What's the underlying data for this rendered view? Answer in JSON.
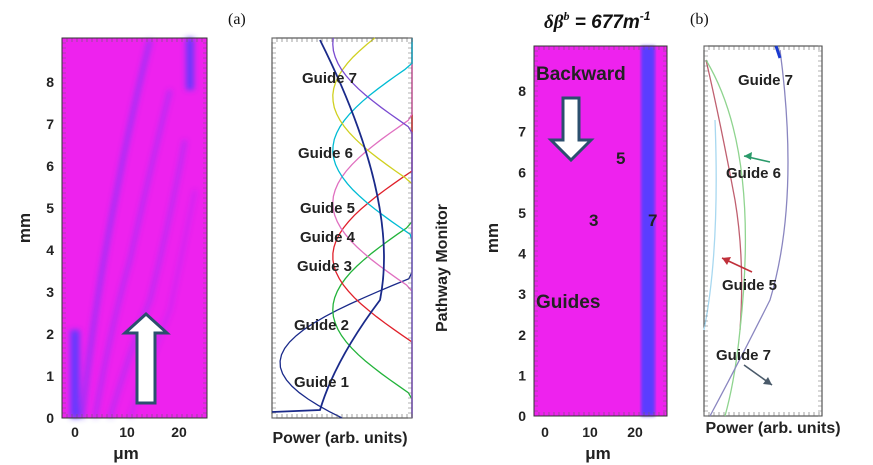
{
  "panel_a": {
    "tag": "(a)",
    "intensity_map": {
      "y_label": "mm",
      "x_label": "μm",
      "y_ticks": [
        "0",
        "1",
        "2",
        "3",
        "4",
        "5",
        "6",
        "7",
        "8"
      ],
      "x_ticks": [
        "0",
        "10",
        "20"
      ],
      "colors": {
        "background": "#ee22ee",
        "beam": "#5a3cff"
      }
    },
    "power_plot": {
      "x_label": "Power (arb. units)",
      "side_label": "Pathway Monitor",
      "guide_labels": [
        "Guide 7",
        "Guide 6",
        "Guide 5",
        "Guide 4",
        "Guide 3",
        "Guide 2",
        "Guide 1"
      ]
    }
  },
  "panel_b": {
    "tag": "(b)",
    "title": "δβ",
    "title_sup": "b",
    "title_value": " = 677m",
    "title_exp": "-1",
    "intensity_map": {
      "y_label": "mm",
      "x_label": "μm",
      "y_ticks": [
        "0",
        "1",
        "2",
        "3",
        "4",
        "5",
        "6",
        "7",
        "8"
      ],
      "x_ticks": [
        "0",
        "10",
        "20"
      ],
      "text_top": "Backward",
      "text_bottom": "Guides",
      "guide_numbers": [
        "5",
        "3",
        "7"
      ],
      "colors": {
        "background": "#ee22ee",
        "beam": "#5a3cff"
      }
    },
    "power_plot": {
      "x_label": "Power (arb. units)",
      "guide_labels": [
        "Guide 7",
        "Guide 6",
        "Guide 5",
        "Guide 7"
      ]
    }
  }
}
